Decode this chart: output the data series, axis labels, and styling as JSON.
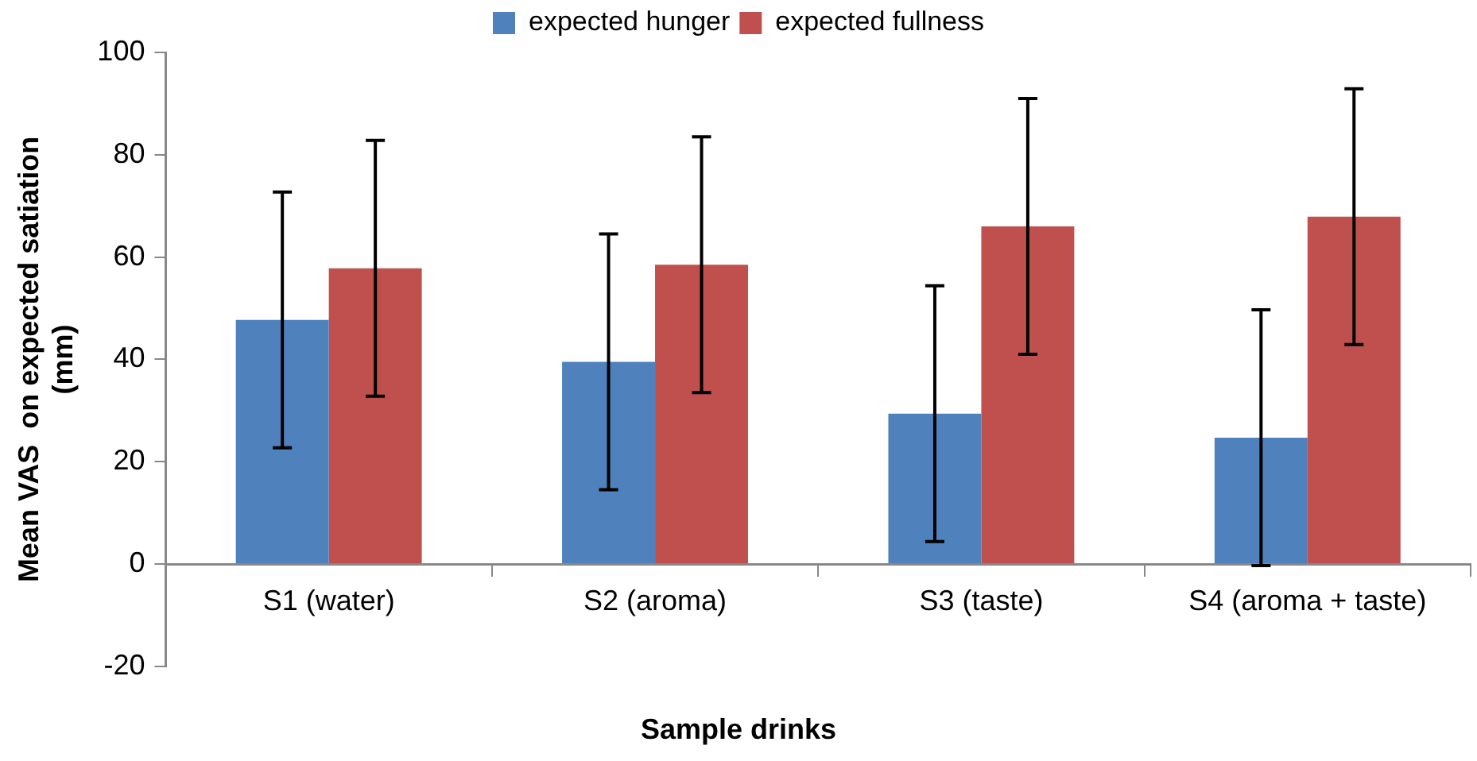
{
  "chart_data": {
    "type": "bar",
    "xlabel": "Sample drinks",
    "ylabel": "Mean VAS  on expected satiation (mm)",
    "categories": [
      "S1 (water)",
      "S2 (aroma)",
      "S3 (taste)",
      "S4 (aroma + taste)"
    ],
    "series": [
      {
        "name": "expected hunger",
        "color": "#4f81bd",
        "values": [
          47.7,
          39.5,
          29.4,
          24.7
        ],
        "errors": [
          25,
          25,
          25,
          25
        ]
      },
      {
        "name": "expected fullness",
        "color": "#c0504d",
        "values": [
          57.8,
          58.5,
          66,
          67.9
        ],
        "errors": [
          25,
          25,
          25,
          25
        ]
      }
    ],
    "ylim": [
      -20,
      100
    ],
    "yticks": [
      -20,
      0,
      20,
      40,
      60,
      80,
      100
    ],
    "grid": false,
    "legend": "top"
  }
}
